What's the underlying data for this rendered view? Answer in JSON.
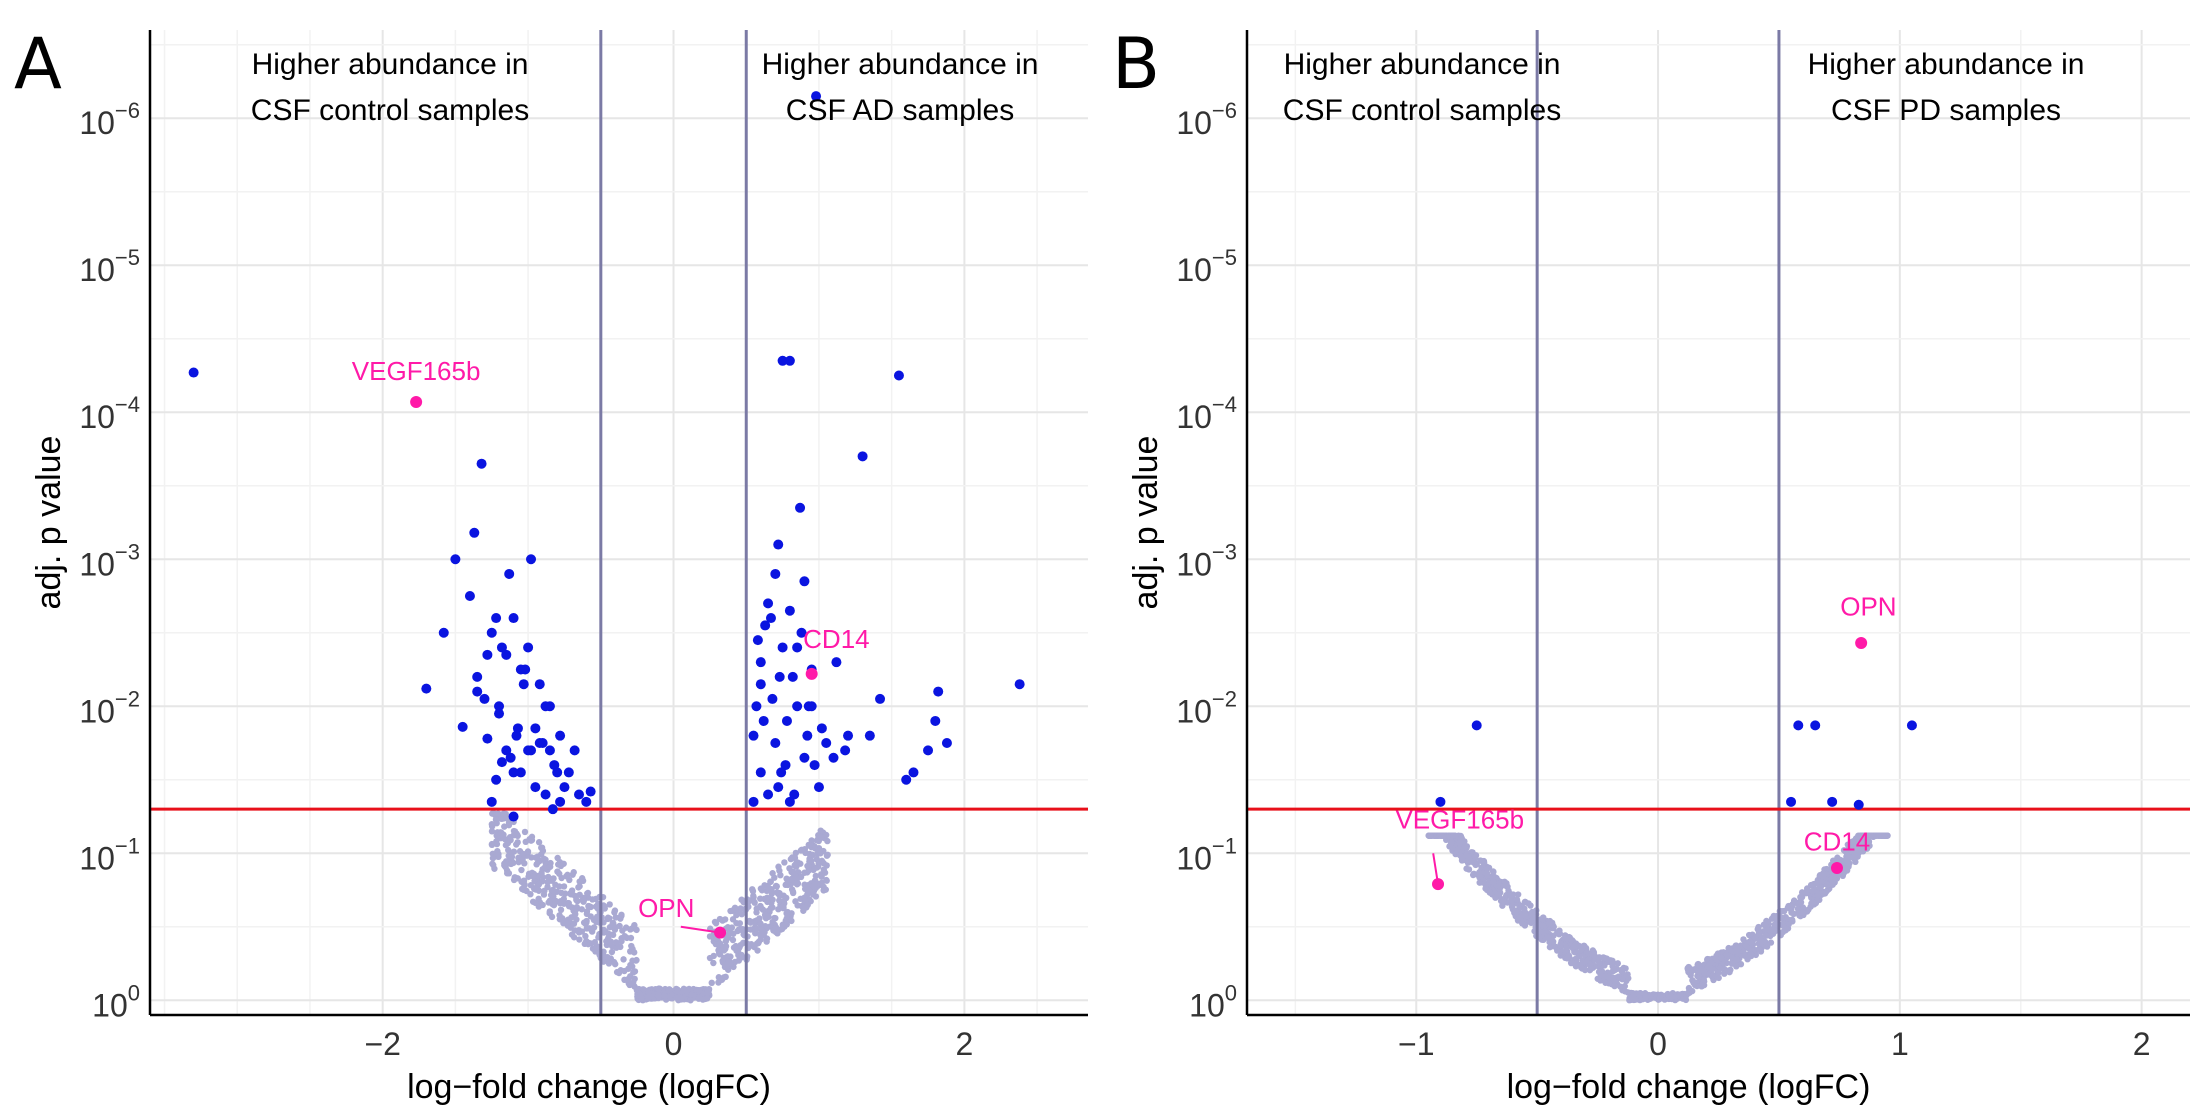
{
  "panels": [
    {
      "letter": "A",
      "xlabel": "log−fold change (logFC)",
      "ylabel": "adj. p value",
      "xlim": [
        -3.6,
        2.85
      ],
      "ylim_exp": [
        0.1,
        -6.6
      ],
      "x_ticks": [
        {
          "v": -2,
          "label": "−2"
        },
        {
          "v": 0,
          "label": "0"
        },
        {
          "v": 2,
          "label": "2"
        }
      ],
      "y_ticks": [
        0,
        -1,
        -2,
        -3,
        -4,
        -5,
        -6
      ],
      "y_tick_base": "10",
      "y_tick_exp": [
        "0",
        "−1",
        "−2",
        "−3",
        "−4",
        "−5",
        "−6"
      ],
      "vlines": [
        -0.5,
        0.5
      ],
      "hline_exp": -1.3,
      "region_left": [
        "Higher abundance in",
        "CSF control samples"
      ],
      "region_right": [
        "Higher abundance in",
        "CSF AD samples"
      ],
      "significant": [
        [
          -3.3,
          -4.27
        ],
        [
          -1.7,
          -2.12
        ],
        [
          -1.58,
          -2.5
        ],
        [
          -1.5,
          -3.0
        ],
        [
          -1.45,
          -1.86
        ],
        [
          -1.37,
          -3.18
        ],
        [
          -1.35,
          -2.2
        ],
        [
          -1.32,
          -3.65
        ],
        [
          -1.28,
          -2.35
        ],
        [
          -1.22,
          -2.6
        ],
        [
          -1.2,
          -2.0
        ],
        [
          -1.15,
          -1.7
        ],
        [
          -1.12,
          -1.65
        ],
        [
          -1.1,
          -2.6
        ],
        [
          -1.07,
          -1.85
        ],
        [
          -1.05,
          -1.55
        ],
        [
          -1.02,
          -2.25
        ],
        [
          -1.0,
          -2.4
        ],
        [
          -0.98,
          -1.7
        ],
        [
          -0.95,
          -1.45
        ],
        [
          -0.92,
          -2.15
        ],
        [
          -0.9,
          -1.75
        ],
        [
          -0.88,
          -1.4
        ],
        [
          -0.85,
          -2.0
        ],
        [
          -0.82,
          -1.6
        ],
        [
          -0.8,
          -1.55
        ],
        [
          -0.78,
          -1.8
        ],
        [
          -0.75,
          -1.45
        ],
        [
          -1.25,
          -1.35
        ],
        [
          -1.2,
          -1.95
        ],
        [
          -1.18,
          -2.4
        ],
        [
          -1.13,
          -2.9
        ],
        [
          -1.1,
          -1.55
        ],
        [
          -1.05,
          -2.25
        ],
        [
          -1.0,
          -1.7
        ],
        [
          -0.98,
          -3.0
        ],
        [
          -0.95,
          -1.85
        ],
        [
          -0.92,
          -1.75
        ],
        [
          -0.88,
          -2.0
        ],
        [
          -0.85,
          -1.7
        ],
        [
          -0.83,
          -1.3
        ],
        [
          -0.78,
          -1.35
        ],
        [
          -0.72,
          -1.55
        ],
        [
          -0.68,
          -1.7
        ],
        [
          -0.65,
          -1.4
        ],
        [
          -0.6,
          -1.35
        ],
        [
          -0.57,
          -1.42
        ],
        [
          -1.4,
          -2.75
        ],
        [
          -1.35,
          -2.1
        ],
        [
          -1.28,
          -1.78
        ],
        [
          -1.25,
          -2.5
        ],
        [
          -1.15,
          -2.35
        ],
        [
          -1.08,
          -1.8
        ],
        [
          -1.03,
          -2.15
        ],
        [
          -1.3,
          -2.05
        ],
        [
          -1.22,
          -1.5
        ],
        [
          -1.18,
          -1.62
        ],
        [
          -1.1,
          -1.25
        ],
        [
          0.55,
          -1.35
        ],
        [
          0.55,
          -1.8
        ],
        [
          0.57,
          -2.0
        ],
        [
          0.58,
          -2.45
        ],
        [
          0.6,
          -1.55
        ],
        [
          0.6,
          -2.15
        ],
        [
          0.62,
          -1.9
        ],
        [
          0.63,
          -2.55
        ],
        [
          0.65,
          -2.7
        ],
        [
          0.65,
          -1.4
        ],
        [
          0.67,
          -2.6
        ],
        [
          0.7,
          -1.75
        ],
        [
          0.7,
          -2.9
        ],
        [
          0.72,
          -3.1
        ],
        [
          0.73,
          -2.2
        ],
        [
          0.75,
          -2.4
        ],
        [
          0.75,
          -4.35
        ],
        [
          0.77,
          -1.6
        ],
        [
          0.78,
          -1.9
        ],
        [
          0.8,
          -4.35
        ],
        [
          0.8,
          -2.65
        ],
        [
          0.82,
          -2.2
        ],
        [
          0.83,
          -1.4
        ],
        [
          0.85,
          -2.0
        ],
        [
          0.85,
          -2.4
        ],
        [
          0.87,
          -3.35
        ],
        [
          0.9,
          -2.85
        ],
        [
          0.9,
          -1.65
        ],
        [
          0.92,
          -1.8
        ],
        [
          0.95,
          -2.0
        ],
        [
          0.97,
          -1.6
        ],
        [
          0.98,
          -6.15
        ],
        [
          1.0,
          -1.45
        ],
        [
          1.05,
          -1.75
        ],
        [
          1.1,
          -1.65
        ],
        [
          1.12,
          -2.3
        ],
        [
          1.18,
          -1.7
        ],
        [
          1.2,
          -1.8
        ],
        [
          1.3,
          -3.7
        ],
        [
          1.35,
          -1.8
        ],
        [
          1.42,
          -2.05
        ],
        [
          1.55,
          -4.25
        ],
        [
          1.6,
          -1.5
        ],
        [
          1.65,
          -1.55
        ],
        [
          1.75,
          -1.7
        ],
        [
          1.8,
          -1.9
        ],
        [
          1.82,
          -2.1
        ],
        [
          1.88,
          -1.75
        ],
        [
          2.38,
          -2.15
        ],
        [
          0.68,
          -2.05
        ],
        [
          0.74,
          -1.55
        ],
        [
          0.88,
          -2.5
        ],
        [
          0.93,
          -2.0
        ],
        [
          1.02,
          -1.85
        ],
        [
          0.6,
          -2.3
        ],
        [
          0.72,
          -1.45
        ],
        [
          0.95,
          -2.25
        ],
        [
          0.8,
          -1.35
        ]
      ],
      "highlights": [
        {
          "name": "VEGF165b",
          "x": -1.77,
          "y": -4.07,
          "tx": -1.77,
          "ty": -4.07,
          "anchor": "middle",
          "dy": -0.08
        },
        {
          "name": "CD14",
          "x": 0.95,
          "y": -2.22,
          "tx": 1.12,
          "ty": -2.33,
          "anchor": "middle",
          "dy": 0
        },
        {
          "name": "OPN",
          "x": 0.32,
          "y": -0.46,
          "tx": -0.05,
          "ty": -0.5,
          "anchor": "middle",
          "dy": 0
        }
      ]
    },
    {
      "letter": "B",
      "xlabel": "log−fold change (logFC)",
      "ylabel": "adj. p value",
      "xlim": [
        -1.7,
        2.2
      ],
      "ylim_exp": [
        0.1,
        -6.6
      ],
      "x_ticks": [
        {
          "v": -1,
          "label": "−1"
        },
        {
          "v": 0,
          "label": "0"
        },
        {
          "v": 1,
          "label": "1"
        },
        {
          "v": 2,
          "label": "2"
        }
      ],
      "y_ticks": [
        0,
        -1,
        -2,
        -3,
        -4,
        -5,
        -6
      ],
      "y_tick_base": "10",
      "y_tick_exp": [
        "0",
        "−1",
        "−2",
        "−3",
        "−4",
        "−5",
        "−6"
      ],
      "vlines": [
        -0.5,
        0.5
      ],
      "hline_exp": -1.3,
      "region_left": [
        "Higher abundance in",
        "CSF control samples"
      ],
      "region_right": [
        "Higher abundance in",
        "CSF PD samples"
      ],
      "significant": [
        [
          -0.9,
          -1.35
        ],
        [
          -0.75,
          -1.87
        ],
        [
          0.55,
          -1.35
        ],
        [
          0.58,
          -1.87
        ],
        [
          0.65,
          -1.87
        ],
        [
          0.72,
          -1.35
        ],
        [
          0.83,
          -1.33
        ],
        [
          1.05,
          -1.87
        ]
      ],
      "highlights": [
        {
          "name": "OPN",
          "x": 0.84,
          "y": -2.43,
          "tx": 0.87,
          "ty": -2.43,
          "anchor": "middle",
          "dy": -0.12
        },
        {
          "name": "CD14",
          "x": 0.74,
          "y": -0.9,
          "tx": 0.74,
          "ty": -0.9,
          "anchor": "middle",
          "dy": -0.05
        },
        {
          "name": "VEGF165b",
          "x": -0.91,
          "y": -0.79,
          "tx": -0.82,
          "ty": -1.1,
          "anchor": "middle",
          "dy": 0
        }
      ]
    }
  ],
  "chart_data": [
    {
      "type": "scatter",
      "title": "A",
      "xlabel": "log−fold change (logFC)",
      "ylabel": "adj. p value",
      "y_scale": "log10 (reversed)",
      "annotations": [
        "Higher abundance in CSF control samples",
        "Higher abundance in CSF AD samples"
      ],
      "threshold_logFC": [
        -0.5,
        0.5
      ],
      "threshold_adj_p": 0.05,
      "labeled_points": [
        {
          "name": "VEGF165b",
          "logFC": -1.77,
          "adj_p": 8.5e-05
        },
        {
          "name": "CD14",
          "logFC": 0.95,
          "adj_p": 0.006
        },
        {
          "name": "OPN",
          "logFC": 0.32,
          "adj_p": 0.35
        }
      ]
    },
    {
      "type": "scatter",
      "title": "B",
      "xlabel": "log−fold change (logFC)",
      "ylabel": "adj. p value",
      "y_scale": "log10 (reversed)",
      "annotations": [
        "Higher abundance in CSF control samples",
        "Higher abundance in CSF PD samples"
      ],
      "threshold_logFC": [
        -0.5,
        0.5
      ],
      "threshold_adj_p": 0.05,
      "labeled_points": [
        {
          "name": "OPN",
          "logFC": 0.84,
          "adj_p": 0.0037
        },
        {
          "name": "CD14",
          "logFC": 0.74,
          "adj_p": 0.13
        },
        {
          "name": "VEGF165b",
          "logFC": -0.91,
          "adj_p": 0.16
        }
      ]
    }
  ]
}
